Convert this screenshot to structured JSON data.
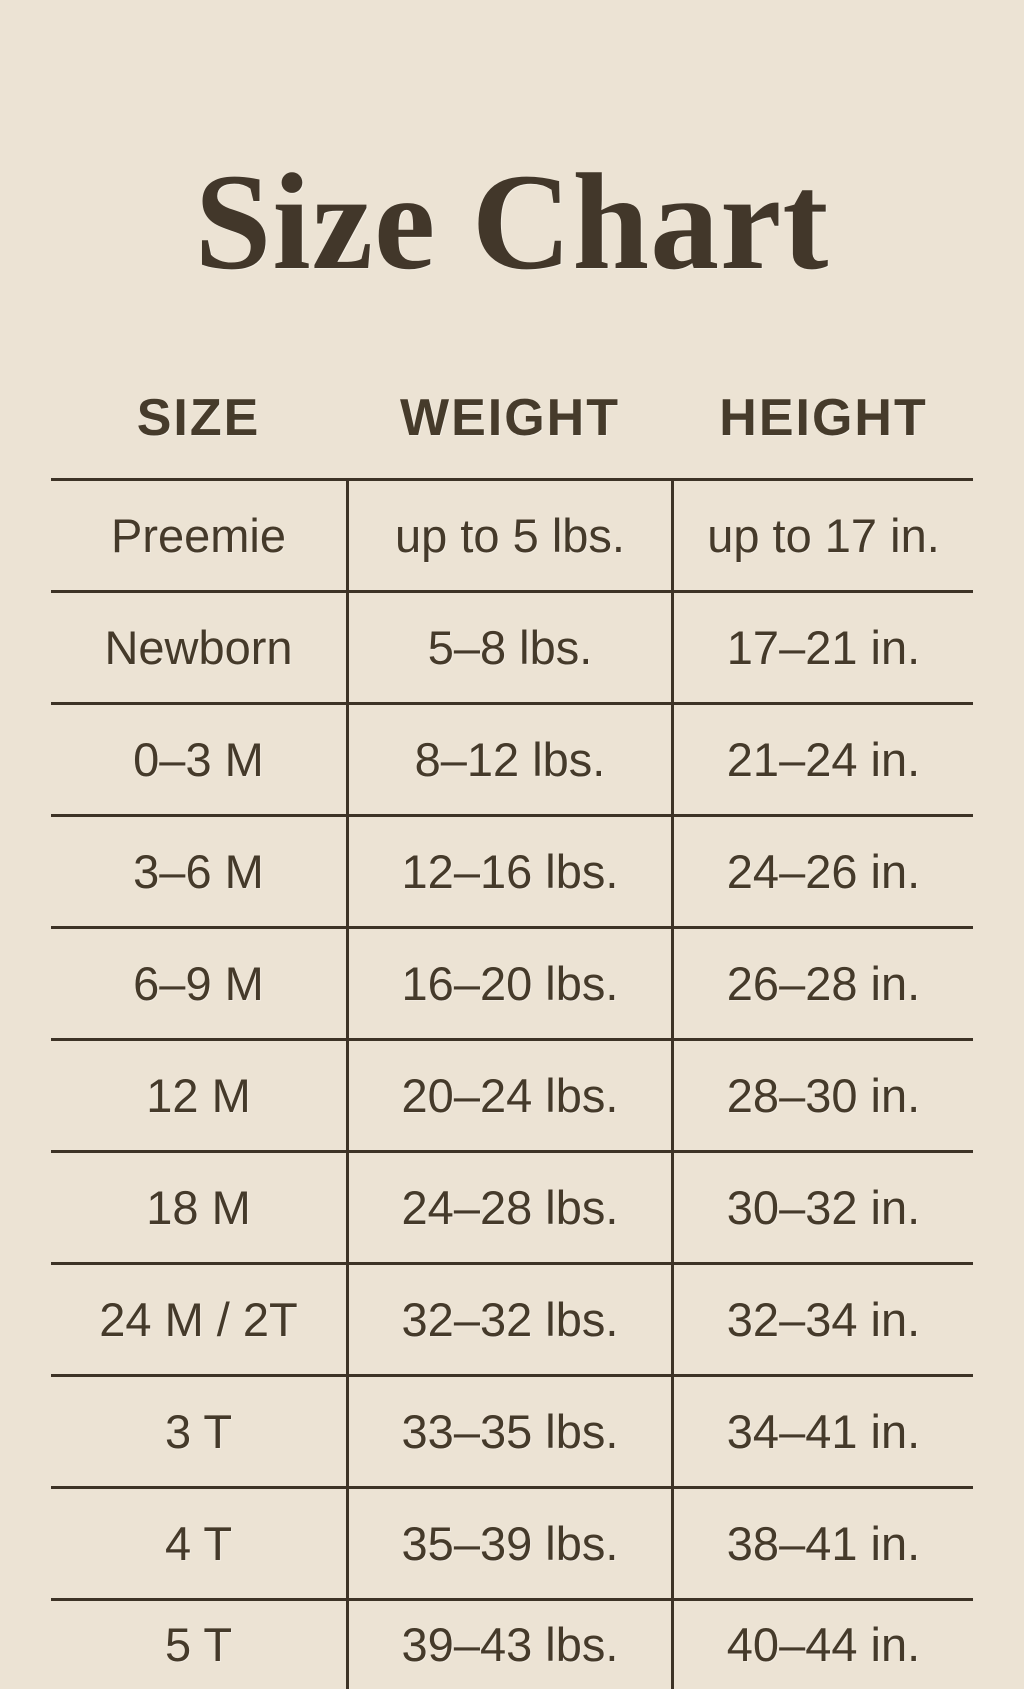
{
  "page": {
    "background_color": "#ece3d4",
    "ink_color": "#453a2a",
    "line_color": "#3d3326"
  },
  "chart_data": {
    "type": "table",
    "title": "Size Chart",
    "columns": [
      "SIZE",
      "WEIGHT",
      "HEIGHT"
    ],
    "rows": [
      {
        "size": "Preemie",
        "weight": "up to 5 lbs.",
        "height": "up to 17 in."
      },
      {
        "size": "Newborn",
        "weight": "5–8 lbs.",
        "height": "17–21 in."
      },
      {
        "size": "0–3 M",
        "weight": "8–12 lbs.",
        "height": "21–24 in."
      },
      {
        "size": "3–6 M",
        "weight": "12–16 lbs.",
        "height": "24–26 in."
      },
      {
        "size": "6–9 M",
        "weight": "16–20 lbs.",
        "height": "26–28 in."
      },
      {
        "size": "12 M",
        "weight": "20–24 lbs.",
        "height": "28–30 in."
      },
      {
        "size": "18 M",
        "weight": "24–28 lbs.",
        "height": "30–32 in."
      },
      {
        "size": "24 M / 2T",
        "weight": "32–32 lbs.",
        "height": "32–34 in."
      },
      {
        "size": "3 T",
        "weight": "33–35 lbs.",
        "height": "34–41 in."
      },
      {
        "size": "4 T",
        "weight": "35–39 lbs.",
        "height": "38–41 in."
      },
      {
        "size": "5 T",
        "weight": "39–43 lbs.",
        "height": "40–44 in."
      }
    ]
  }
}
